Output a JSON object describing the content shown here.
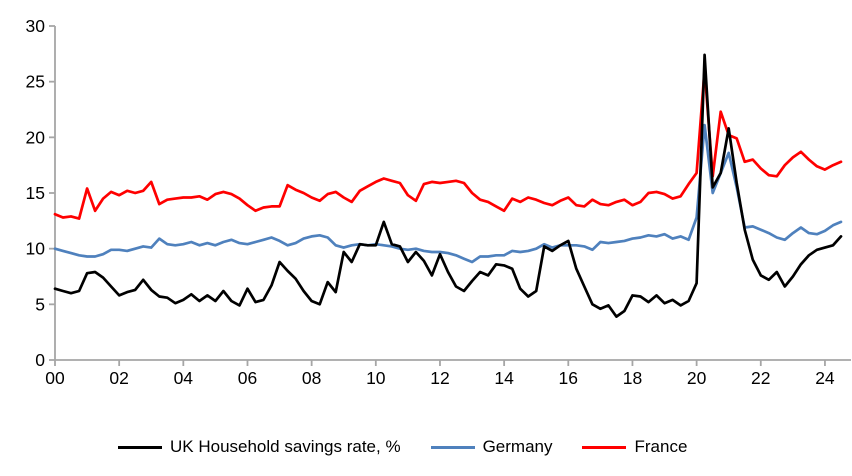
{
  "chart_data": {
    "type": "line",
    "title": "",
    "xlabel": "",
    "ylabel": "",
    "x_start_year": 2000,
    "points_per_year": 4,
    "xlim_years": [
      0,
      24.75
    ],
    "ylim": [
      0,
      30
    ],
    "grid": false,
    "legend_position": "bottom",
    "axis_color": "#a6a6a6",
    "tick_label_color": "#000000",
    "y_ticks": [
      0,
      5,
      10,
      15,
      20,
      25,
      30
    ],
    "y_tick_labels": [
      "0",
      "5",
      "10",
      "15",
      "20",
      "25",
      "30"
    ],
    "x_ticks_years": [
      0,
      2,
      4,
      6,
      8,
      10,
      12,
      14,
      16,
      18,
      20,
      22,
      24
    ],
    "x_tick_labels": [
      "00",
      "02",
      "04",
      "06",
      "08",
      "10",
      "12",
      "14",
      "16",
      "18",
      "20",
      "22",
      "24"
    ],
    "series": [
      {
        "name": "UK Household savings rate, %",
        "color": "#000000",
        "values": [
          6.4,
          6.2,
          6.0,
          6.2,
          7.8,
          7.9,
          7.4,
          6.6,
          5.8,
          6.1,
          6.3,
          7.2,
          6.3,
          5.7,
          5.6,
          5.1,
          5.4,
          5.9,
          5.3,
          5.8,
          5.3,
          6.2,
          5.3,
          4.9,
          6.4,
          5.2,
          5.4,
          6.7,
          8.8,
          8.0,
          7.3,
          6.2,
          5.3,
          5.0,
          7.0,
          6.1,
          9.7,
          8.8,
          10.4,
          10.3,
          10.3,
          12.4,
          10.4,
          10.2,
          8.8,
          9.7,
          8.9,
          7.6,
          9.5,
          7.9,
          6.6,
          6.2,
          7.1,
          7.9,
          7.6,
          8.6,
          8.5,
          8.2,
          6.4,
          5.7,
          6.2,
          10.2,
          9.8,
          10.3,
          10.7,
          8.2,
          6.6,
          5.0,
          4.6,
          4.9,
          3.9,
          4.4,
          5.8,
          5.7,
          5.2,
          5.8,
          5.1,
          5.4,
          4.9,
          5.3,
          6.9,
          27.4,
          15.5,
          16.8,
          20.8,
          15.9,
          11.7,
          9.0,
          7.6,
          7.2,
          7.9,
          6.6,
          7.5,
          8.6,
          9.4,
          9.9,
          10.1,
          10.3,
          11.1
        ]
      },
      {
        "name": "Germany",
        "color": "#4f81bd",
        "values": [
          10.0,
          9.8,
          9.6,
          9.4,
          9.3,
          9.3,
          9.5,
          9.9,
          9.9,
          9.8,
          10.0,
          10.2,
          10.1,
          10.9,
          10.4,
          10.3,
          10.4,
          10.6,
          10.3,
          10.5,
          10.3,
          10.6,
          10.8,
          10.5,
          10.4,
          10.6,
          10.8,
          11.0,
          10.7,
          10.3,
          10.5,
          10.9,
          11.1,
          11.2,
          11.0,
          10.3,
          10.1,
          10.3,
          10.4,
          10.3,
          10.4,
          10.3,
          10.2,
          10.0,
          9.9,
          10.0,
          9.8,
          9.7,
          9.7,
          9.6,
          9.4,
          9.1,
          8.8,
          9.3,
          9.3,
          9.4,
          9.4,
          9.8,
          9.7,
          9.8,
          10.0,
          10.4,
          10.1,
          10.3,
          10.3,
          10.3,
          10.2,
          9.9,
          10.6,
          10.5,
          10.6,
          10.7,
          10.9,
          11.0,
          11.2,
          11.1,
          11.3,
          10.9,
          11.1,
          10.8,
          12.8,
          21.1,
          15.0,
          16.8,
          18.6,
          15.5,
          11.9,
          12.0,
          11.7,
          11.4,
          11.0,
          10.8,
          11.4,
          11.9,
          11.4,
          11.3,
          11.6,
          12.1,
          12.4
        ]
      },
      {
        "name": "France",
        "color": "#ff0000",
        "values": [
          13.1,
          12.8,
          12.9,
          12.7,
          15.4,
          13.4,
          14.5,
          15.1,
          14.8,
          15.2,
          15.0,
          15.2,
          16.0,
          14.0,
          14.4,
          14.5,
          14.6,
          14.6,
          14.7,
          14.4,
          14.9,
          15.1,
          14.9,
          14.5,
          13.9,
          13.4,
          13.7,
          13.8,
          13.8,
          15.7,
          15.3,
          15.0,
          14.6,
          14.3,
          14.9,
          15.1,
          14.6,
          14.2,
          15.2,
          15.6,
          16.0,
          16.3,
          16.1,
          15.9,
          14.8,
          14.3,
          15.8,
          16.0,
          15.9,
          16.0,
          16.1,
          15.9,
          15.0,
          14.4,
          14.2,
          13.8,
          13.4,
          14.5,
          14.2,
          14.6,
          14.4,
          14.1,
          13.9,
          14.3,
          14.6,
          13.9,
          13.8,
          14.4,
          14.0,
          13.9,
          14.2,
          14.4,
          13.9,
          14.2,
          15.0,
          15.1,
          14.9,
          14.5,
          14.7,
          15.8,
          16.8,
          26.1,
          16.5,
          22.3,
          20.2,
          19.9,
          17.8,
          18.0,
          17.2,
          16.6,
          16.5,
          17.5,
          18.2,
          18.7,
          18.0,
          17.4,
          17.1,
          17.5,
          17.8
        ]
      }
    ]
  },
  "legend": {
    "items": [
      {
        "label": "UK Household savings rate, %"
      },
      {
        "label": "Germany"
      },
      {
        "label": "France"
      }
    ]
  }
}
